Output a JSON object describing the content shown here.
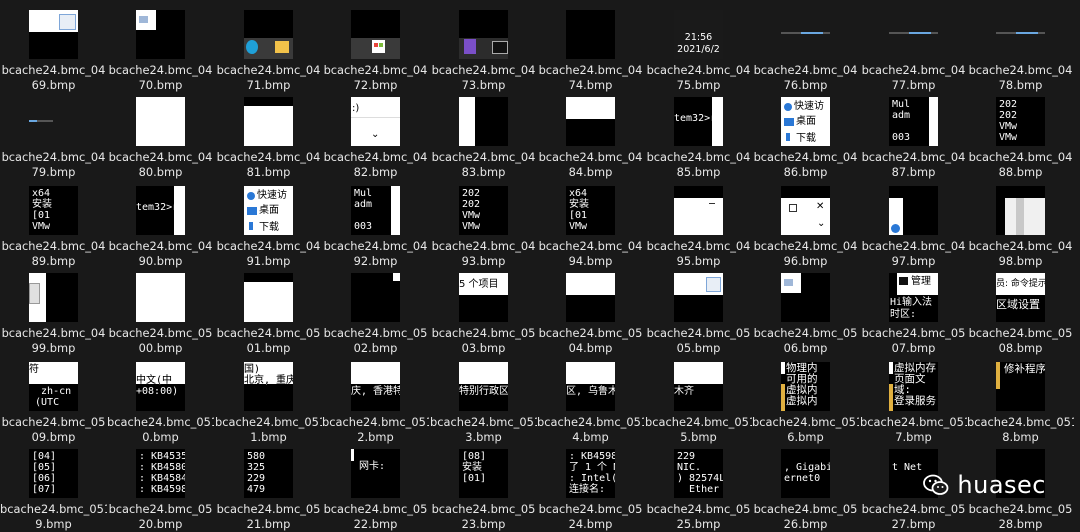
{
  "window": {
    "background": "#191919"
  },
  "rows": [
    {
      "top": 0,
      "items": [
        {
          "l1": "bcache24.bmc_04",
          "l2": "69.bmp",
          "kind": "split-white-top"
        },
        {
          "l1": "bcache24.bmc_04",
          "l2": "70.bmp",
          "kind": "white-corner"
        },
        {
          "l1": "bcache24.bmc_04",
          "l2": "71.bmp",
          "kind": "taskbar-edge"
        },
        {
          "l1": "bcache24.bmc_04",
          "l2": "72.bmp",
          "kind": "taskbar-store"
        },
        {
          "l1": "bcache24.bmc_04",
          "l2": "73.bmp",
          "kind": "taskbar-vs"
        },
        {
          "l1": "bcache24.bmc_04",
          "l2": "74.bmp",
          "kind": "black"
        },
        {
          "l1": "bcache24.bmc_04",
          "l2": "75.bmp",
          "kind": "clock",
          "time": "21:56",
          "date": "2021/6/2"
        },
        {
          "l1": "bcache24.bmc_04",
          "l2": "76.bmp",
          "kind": "taskline"
        },
        {
          "l1": "bcache24.bmc_04",
          "l2": "77.bmp",
          "kind": "taskline"
        },
        {
          "l1": "bcache24.bmc_04",
          "l2": "78.bmp",
          "kind": "taskline"
        }
      ]
    },
    {
      "top": 87,
      "items": [
        {
          "l1": "bcache24.bmc_04",
          "l2": "79.bmp",
          "kind": "taskline2"
        },
        {
          "l1": "bcache24.bmc_04",
          "l2": "80.bmp",
          "kind": "white"
        },
        {
          "l1": "bcache24.bmc_04",
          "l2": "81.bmp",
          "kind": "white-bar"
        },
        {
          "l1": "bcache24.bmc_04",
          "l2": "82.bmp",
          "kind": "explorer",
          "text": ":)"
        },
        {
          "l1": "bcache24.bmc_04",
          "l2": "83.bmp",
          "kind": "half-white"
        },
        {
          "l1": "bcache24.bmc_04",
          "l2": "84.bmp",
          "kind": "white-band"
        },
        {
          "l1": "bcache24.bmc_04",
          "l2": "85.bmp",
          "kind": "cmd-text",
          "text": "tem32>r"
        },
        {
          "l1": "bcache24.bmc_04",
          "l2": "86.bmp",
          "kind": "quick",
          "t1": "快速访",
          "t2": "桌面",
          "t3": "下载"
        },
        {
          "l1": "bcache24.bmc_04",
          "l2": "87.bmp",
          "kind": "console",
          "text": "Mul\nadm\n\n003"
        },
        {
          "l1": "bcache24.bmc_04",
          "l2": "88.bmp",
          "kind": "console",
          "text": "202\n202\nVMw\nVMw"
        }
      ]
    },
    {
      "top": 174,
      "items": [
        {
          "l1": "bcache24.bmc_04",
          "l2": "89.bmp",
          "kind": "console",
          "text": "x64\n安装\n[01\nVMw"
        },
        {
          "l1": "bcache24.bmc_04",
          "l2": "90.bmp",
          "kind": "cmd-text",
          "text": "tem32>r"
        },
        {
          "l1": "bcache24.bmc_04",
          "l2": "91.bmp",
          "kind": "quick",
          "t1": "快速访",
          "t2": "桌面",
          "t3": "下载"
        },
        {
          "l1": "bcache24.bmc_04",
          "l2": "92.bmp",
          "kind": "console",
          "text": "Mul\nadm\n\n003"
        },
        {
          "l1": "bcache24.bmc_04",
          "l2": "93.bmp",
          "kind": "console",
          "text": "202\n202\nVMw\nVMw"
        },
        {
          "l1": "bcache24.bmc_04",
          "l2": "94.bmp",
          "kind": "console",
          "text": "x64\n安装\n[01\nVMw"
        },
        {
          "l1": "bcache24.bmc_04",
          "l2": "95.bmp",
          "kind": "white-window"
        },
        {
          "l1": "bcache24.bmc_04",
          "l2": "96.bmp",
          "kind": "window-controls"
        },
        {
          "l1": "bcache24.bmc_04",
          "l2": "97.bmp",
          "kind": "help-strip"
        },
        {
          "l1": "bcache24.bmc_04",
          "l2": "98.bmp",
          "kind": "scroll-strip"
        }
      ]
    },
    {
      "top": 261,
      "items": [
        {
          "l1": "bcache24.bmc_04",
          "l2": "99.bmp",
          "kind": "white-left"
        },
        {
          "l1": "bcache24.bmc_05",
          "l2": "00.bmp",
          "kind": "white"
        },
        {
          "l1": "bcache24.bmc_05",
          "l2": "01.bmp",
          "kind": "white-bar"
        },
        {
          "l1": "bcache24.bmc_05",
          "l2": "02.bmp",
          "kind": "black-corner"
        },
        {
          "l1": "bcache24.bmc_05",
          "l2": "03.bmp",
          "kind": "items-count",
          "text": "5 个项目"
        },
        {
          "l1": "bcache24.bmc_05",
          "l2": "04.bmp",
          "kind": "white-band"
        },
        {
          "l1": "bcache24.bmc_05",
          "l2": "05.bmp",
          "kind": "split-white-top-icon"
        },
        {
          "l1": "bcache24.bmc_05",
          "l2": "06.bmp",
          "kind": "white-corner"
        },
        {
          "l1": "bcache24.bmc_05",
          "l2": "07.bmp",
          "kind": "admin-cmd",
          "t1": "管理",
          "t2": "Hi输入法",
          "t3": "时区:"
        },
        {
          "l1": "bcache24.bmc_05",
          "l2": "08.bmp",
          "kind": "admin-cmd2",
          "t1": "员: 命令提示",
          "t2": "区域设置"
        }
      ]
    },
    {
      "top": 348,
      "items": [
        {
          "l1": "bcache24.bmc_05",
          "l2": "09.bmp",
          "kind": "locale",
          "text": "符\n\n  zh-cn\n (UTC"
        },
        {
          "l1": "bcache24.bmc_051",
          "l2": "0.bmp",
          "kind": "locale",
          "text": "\n中文(中\n+08:00)"
        },
        {
          "l1": "bcache24.bmc_051",
          "l2": "1.bmp",
          "kind": "locale",
          "text": "国)\n北京, 重庆"
        },
        {
          "l1": "bcache24.bmc_051",
          "l2": "2.bmp",
          "kind": "locale",
          "text": "\n\n庆, 香港特"
        },
        {
          "l1": "bcache24.bmc_051",
          "l2": "3.bmp",
          "kind": "locale",
          "text": "\n\n特别行政区"
        },
        {
          "l1": "bcache24.bmc_051",
          "l2": "4.bmp",
          "kind": "locale",
          "text": "\n\n区, 乌鲁木"
        },
        {
          "l1": "bcache24.bmc_051",
          "l2": "5.bmp",
          "kind": "locale",
          "text": "\n\n木齐"
        },
        {
          "l1": "bcache24.bmc_051",
          "l2": "6.bmp",
          "kind": "mem",
          "text": "物理内\n可用的\n虚拟内\n虚拟内"
        },
        {
          "l1": "bcache24.bmc_051",
          "l2": "7.bmp",
          "kind": "mem",
          "text": "虚拟内存\n页面文\n域:\n登录服务"
        },
        {
          "l1": "bcache24.bmc_051",
          "l2": "8.bmp",
          "kind": "mem2",
          "text": "修补程序"
        }
      ]
    },
    {
      "top": 435,
      "items": [
        {
          "l1": "bcache24.bmc_051",
          "l2": "9.bmp",
          "kind": "console",
          "text": "[04]\n[05]\n[06]\n[07]"
        },
        {
          "l1": "bcache24.bmc_05",
          "l2": "20.bmp",
          "kind": "console",
          "text": ": KB4535\n: KB4580\n: KB4584\n: KB4598"
        },
        {
          "l1": "bcache24.bmc_05",
          "l2": "21.bmp",
          "kind": "console",
          "text": "580\n325\n229\n479"
        },
        {
          "l1": "bcache24.bmc_05",
          "l2": "22.bmp",
          "kind": "nic",
          "text": "网卡:"
        },
        {
          "l1": "bcache24.bmc_05",
          "l2": "23.bmp",
          "kind": "console",
          "text": "[08]\n安装\n[01]"
        },
        {
          "l1": "bcache24.bmc_05",
          "l2": "24.bmp",
          "kind": "console",
          "text": ": KB4598\n了 1 个 N\n: Intel(R\n连接名:"
        },
        {
          "l1": "bcache24.bmc_05",
          "l2": "25.bmp",
          "kind": "console",
          "text": "229\nNIC.\n) 82574L\n  Ether"
        },
        {
          "l1": "bcache24.bmc_05",
          "l2": "26.bmp",
          "kind": "console",
          "text": "\n, Gigabi\nernet0"
        },
        {
          "l1": "bcache24.bmc_05",
          "l2": "27.bmp",
          "kind": "console",
          "text": "\nt Net"
        },
        {
          "l1": "bcache24.bmc_05",
          "l2": "28.bmp",
          "kind": "black"
        }
      ]
    }
  ],
  "watermark": {
    "text": "huasec",
    "icon": "wechat-icon"
  }
}
